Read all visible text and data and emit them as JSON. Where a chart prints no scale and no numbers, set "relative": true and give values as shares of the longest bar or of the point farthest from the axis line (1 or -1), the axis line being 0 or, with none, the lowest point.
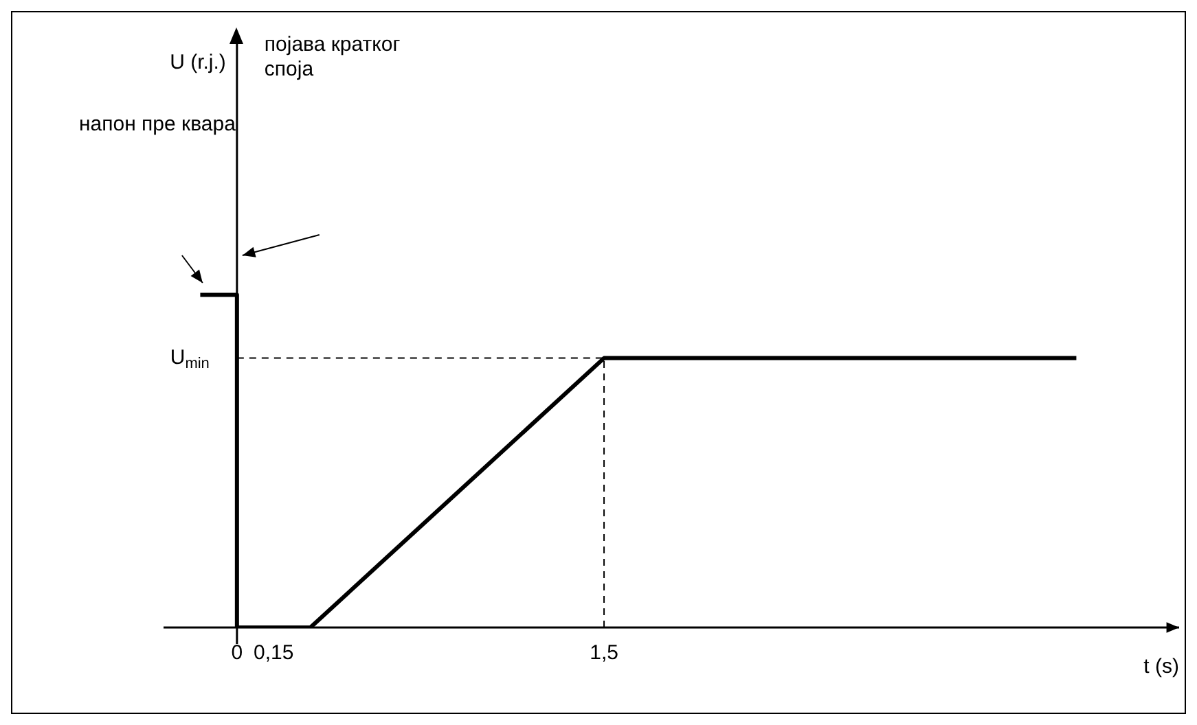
{
  "chart_data": {
    "type": "line",
    "relative": true,
    "xlabel": "t (s)",
    "xlim": [
      -0.3,
      3.85
    ],
    "xticks": [
      0,
      {
        "value": 0.15,
        "label": "0,15"
      },
      {
        "value": 1.5,
        "label": "1,5"
      }
    ],
    "series": [
      {
        "color": "#000000",
        "x": [
          -0.15,
          0,
          0,
          0.3,
          1.5,
          3.43
        ],
        "values": [
          1,
          1,
          0,
          0,
          0.81,
          0.81
        ]
      }
    ],
    "ref_lines": [
      {
        "axis": "y",
        "value": 0.81,
        "label": "U$_{min}$",
        "line_style": "dashed",
        "color": "#000000"
      },
      {
        "axis": "x",
        "value": 1.5,
        "line_style": "dashed",
        "color": "#000000"
      }
    ],
    "annotations": [
      "појава кратког споја",
      "напон пре квара",
      "U (r.j.)"
    ]
  }
}
